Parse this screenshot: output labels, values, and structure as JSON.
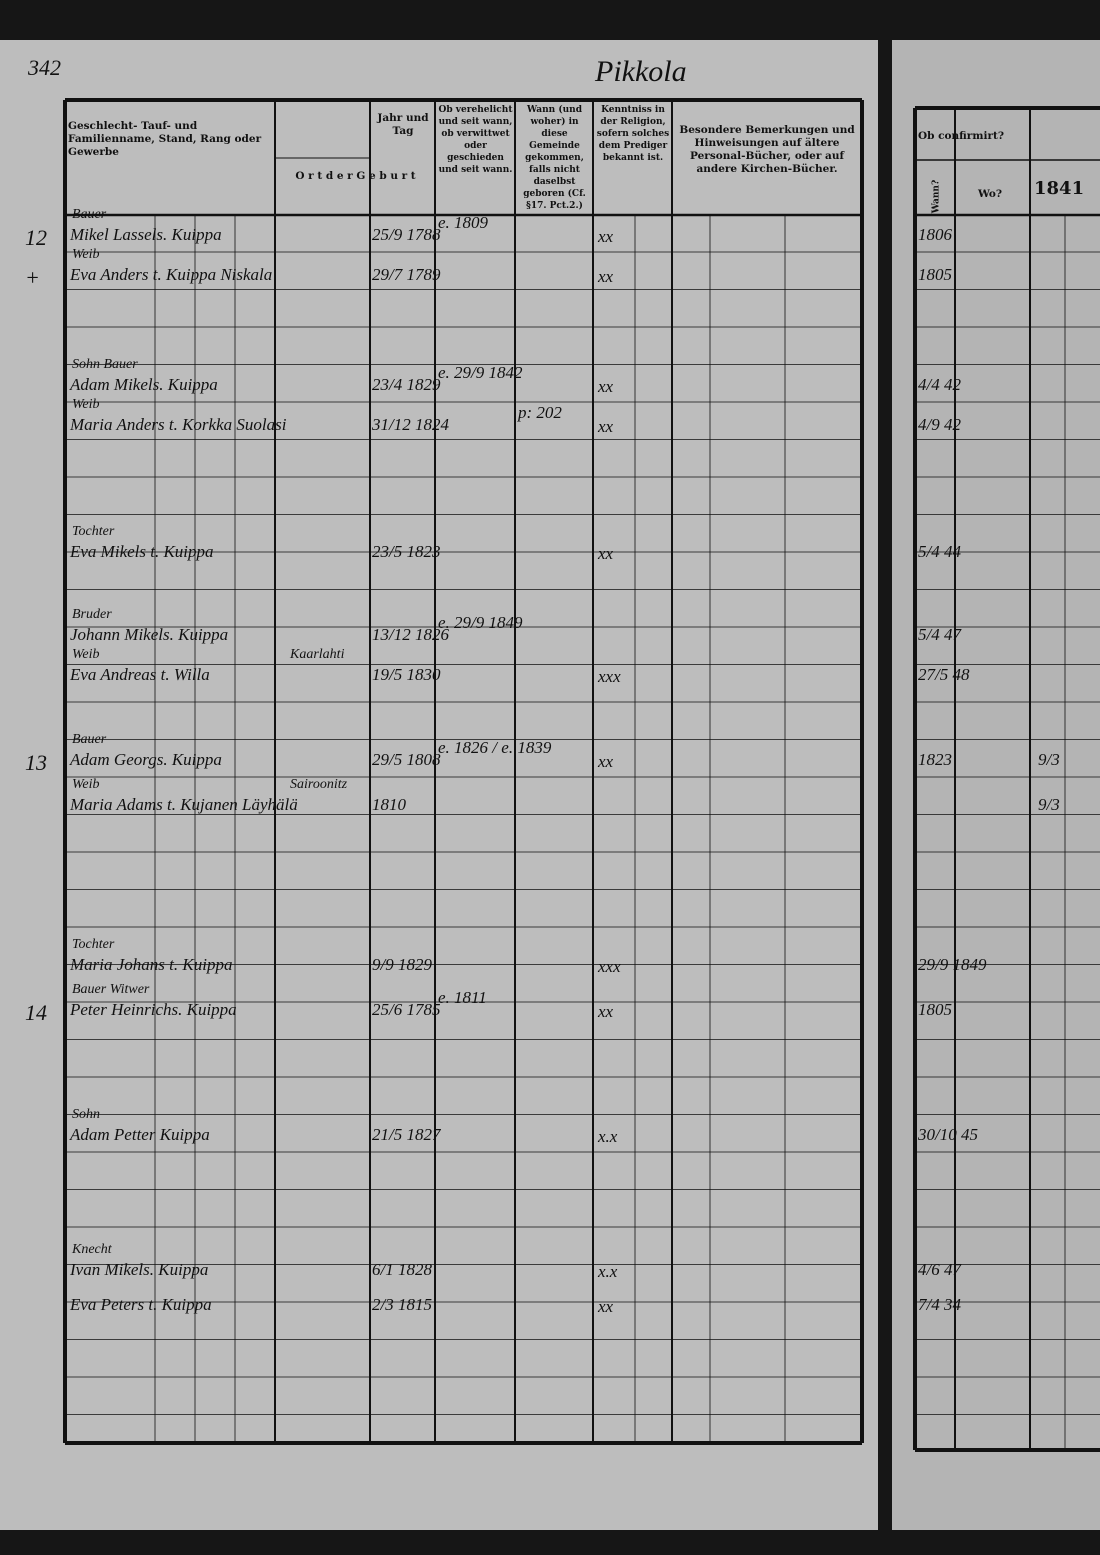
{
  "header": {
    "page_number": "342",
    "village": "Pikkola"
  },
  "columns": {
    "name": "Geschlecht- Tauf- und Familienname, Stand, Rang oder Gewerbe",
    "place": "O r t  d e r  G e b u r t",
    "date": "Jahr und Tag",
    "married": "Ob verehelicht und seit wann, ob verwittwet oder geschieden und seit wann.",
    "moved": "Wann (und woher) in diese Gemeinde gekommen, falls nicht daselbst geboren (Cf. §17. Pct.2.)",
    "knowledge": "Kenntniss in der Religion, sofern solches dem Prediger bekannt ist.",
    "remarks": "Besondere Bemerkungen und Hinweisungen auf ältere Personal-Bücher, oder auf andere Kirchen-Bücher.",
    "confirmed": "Ob confirmirt?",
    "when": "Wann?",
    "where": "Wo?",
    "year": "1841"
  },
  "entries": [
    {
      "num": "12",
      "role": "Bauer",
      "name": "Mikel Lassels. Kuippa",
      "date": "25/9 1788",
      "married": "e. 1809",
      "knowledge": "xx",
      "confirmed": "1806"
    },
    {
      "num": "+",
      "role": "Weib",
      "name": "Eva Anders t. Kuippa Niskala",
      "date": "29/7 1789",
      "knowledge": "xx",
      "confirmed": "1805"
    },
    {
      "role": "Sohn Bauer",
      "name": "Adam Mikels. Kuippa",
      "date": "23/4 1829",
      "married": "e. 29/9 1842",
      "knowledge": "xx",
      "confirmed": "4/4 42"
    },
    {
      "role": "Weib",
      "name": "Maria Anders t. Korkka Suolasi",
      "date": "31/12 1824",
      "moved": "p: 202",
      "knowledge": "xx",
      "confirmed": "4/9 42"
    },
    {
      "role": "Tochter",
      "name": "Eva Mikels t. Kuippa",
      "date": "23/5 1823",
      "knowledge": "xx",
      "confirmed": "5/4 44"
    },
    {
      "role": "Bruder",
      "name": "Johann Mikels. Kuippa",
      "date": "13/12 1826",
      "married": "e. 29/9 1849",
      "confirmed": "5/4 47"
    },
    {
      "role": "Weib",
      "name": "Eva Andreas t. Willa",
      "place": "Kaarlahti",
      "date": "19/5 1830",
      "knowledge": "xxx",
      "confirmed": "27/5 48"
    },
    {
      "num": "13",
      "role": "Bauer",
      "name": "Adam Georgs. Kuippa",
      "date": "29/5 1808",
      "married": "e. 1826 / e. 1839",
      "knowledge": "xx",
      "confirmed": "1823",
      "confirmed_2": "9/3"
    },
    {
      "role": "Weib",
      "name": "Maria Adams t. Kujanen Läyhälä",
      "place": "Sairoonitz",
      "date": "1810",
      "confirmed_2": "9/3"
    },
    {
      "role": "Tochter",
      "name": "Maria Johans t. Kuippa",
      "date": "9/9 1829",
      "knowledge": "xxx",
      "confirmed": "29/9 1849"
    },
    {
      "num": "14",
      "role": "Bauer Witwer",
      "name": "Peter Heinrichs. Kuippa",
      "date": "25/6 1785",
      "married": "e. 1811",
      "knowledge": "xx",
      "confirmed": "1805"
    },
    {
      "role": "Sohn",
      "name": "Adam Petter Kuippa",
      "date": "21/5 1827",
      "knowledge": "x.x",
      "confirmed": "30/10 45"
    },
    {
      "role": "Knecht",
      "name": "Ivan Mikels. Kuippa",
      "date": "6/1 1828",
      "knowledge": "x.x",
      "confirmed": "4/6 47"
    },
    {
      "name": "Eva Peters t. Kuippa",
      "date": "2/3 1815",
      "knowledge": "xx",
      "confirmed": "7/4 34"
    }
  ]
}
